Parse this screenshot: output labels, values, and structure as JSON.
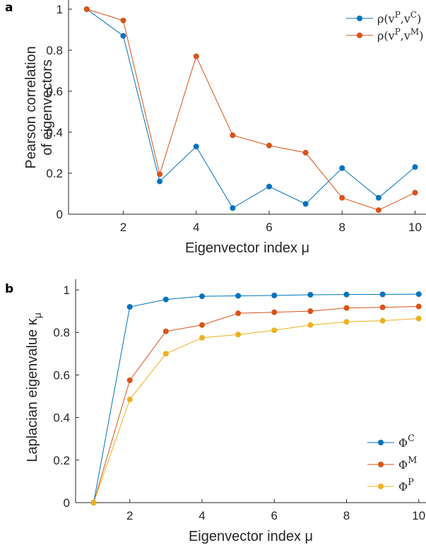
{
  "chart_data": [
    {
      "panel": "a",
      "type": "line",
      "xlabel": "Eigenvector index μ",
      "ylabel_lines": [
        "Pearson correlation",
        "of eigenvectors"
      ],
      "xlim": [
        0.5,
        10.3
      ],
      "ylim": [
        0,
        1
      ],
      "xticks": [
        2,
        4,
        6,
        8,
        10
      ],
      "yticks": [
        0,
        0.2,
        0.4,
        0.6,
        0.8,
        1
      ],
      "x": [
        1,
        2,
        3,
        4,
        5,
        6,
        7,
        8,
        9,
        10
      ],
      "series": [
        {
          "name": "ρ(vP,vC)",
          "legend_base": "ρ(v",
          "sup1": "P",
          "mid": ",v",
          "sup2": "C",
          "close": ")",
          "color": "#0072BD",
          "values": [
            1.0,
            0.87,
            0.16,
            0.33,
            0.03,
            0.135,
            0.05,
            0.225,
            0.08,
            0.23
          ]
        },
        {
          "name": "ρ(vP,vM)",
          "legend_base": "ρ(v",
          "sup1": "P",
          "mid": ",v",
          "sup2": "M",
          "close": ")",
          "color": "#D95319",
          "values": [
            1.0,
            0.945,
            0.195,
            0.77,
            0.385,
            0.335,
            0.3,
            0.08,
            0.02,
            0.105
          ]
        }
      ],
      "legend_position": "top-right",
      "grid": false
    },
    {
      "panel": "b",
      "type": "line",
      "xlabel": "Eigenvector index μ",
      "ylabel": "Laplacian eigenvalue κ",
      "ylabel_sub": "μ",
      "xlim": [
        0.5,
        10.2
      ],
      "ylim": [
        0,
        1.05
      ],
      "xticks": [
        2,
        4,
        6,
        8,
        10
      ],
      "yticks": [
        0,
        0.2,
        0.4,
        0.6,
        0.8,
        1
      ],
      "x": [
        1,
        2,
        3,
        4,
        5,
        6,
        7,
        8,
        9,
        10
      ],
      "series": [
        {
          "name": "ΦC",
          "legend_base": "Φ",
          "sup": "C",
          "color": "#0072BD",
          "values": [
            0,
            0.92,
            0.955,
            0.97,
            0.972,
            0.974,
            0.977,
            0.978,
            0.979,
            0.98
          ]
        },
        {
          "name": "ΦM",
          "legend_base": "Φ",
          "sup": "M",
          "color": "#D95319",
          "values": [
            0,
            0.575,
            0.805,
            0.835,
            0.89,
            0.895,
            0.9,
            0.915,
            0.918,
            0.922
          ]
        },
        {
          "name": "ΦP",
          "legend_base": "Φ",
          "sup": "P",
          "color": "#EDB120",
          "values": [
            0,
            0.485,
            0.7,
            0.775,
            0.79,
            0.81,
            0.835,
            0.85,
            0.855,
            0.865
          ]
        }
      ],
      "legend_position": "bottom-right",
      "grid": false
    }
  ]
}
